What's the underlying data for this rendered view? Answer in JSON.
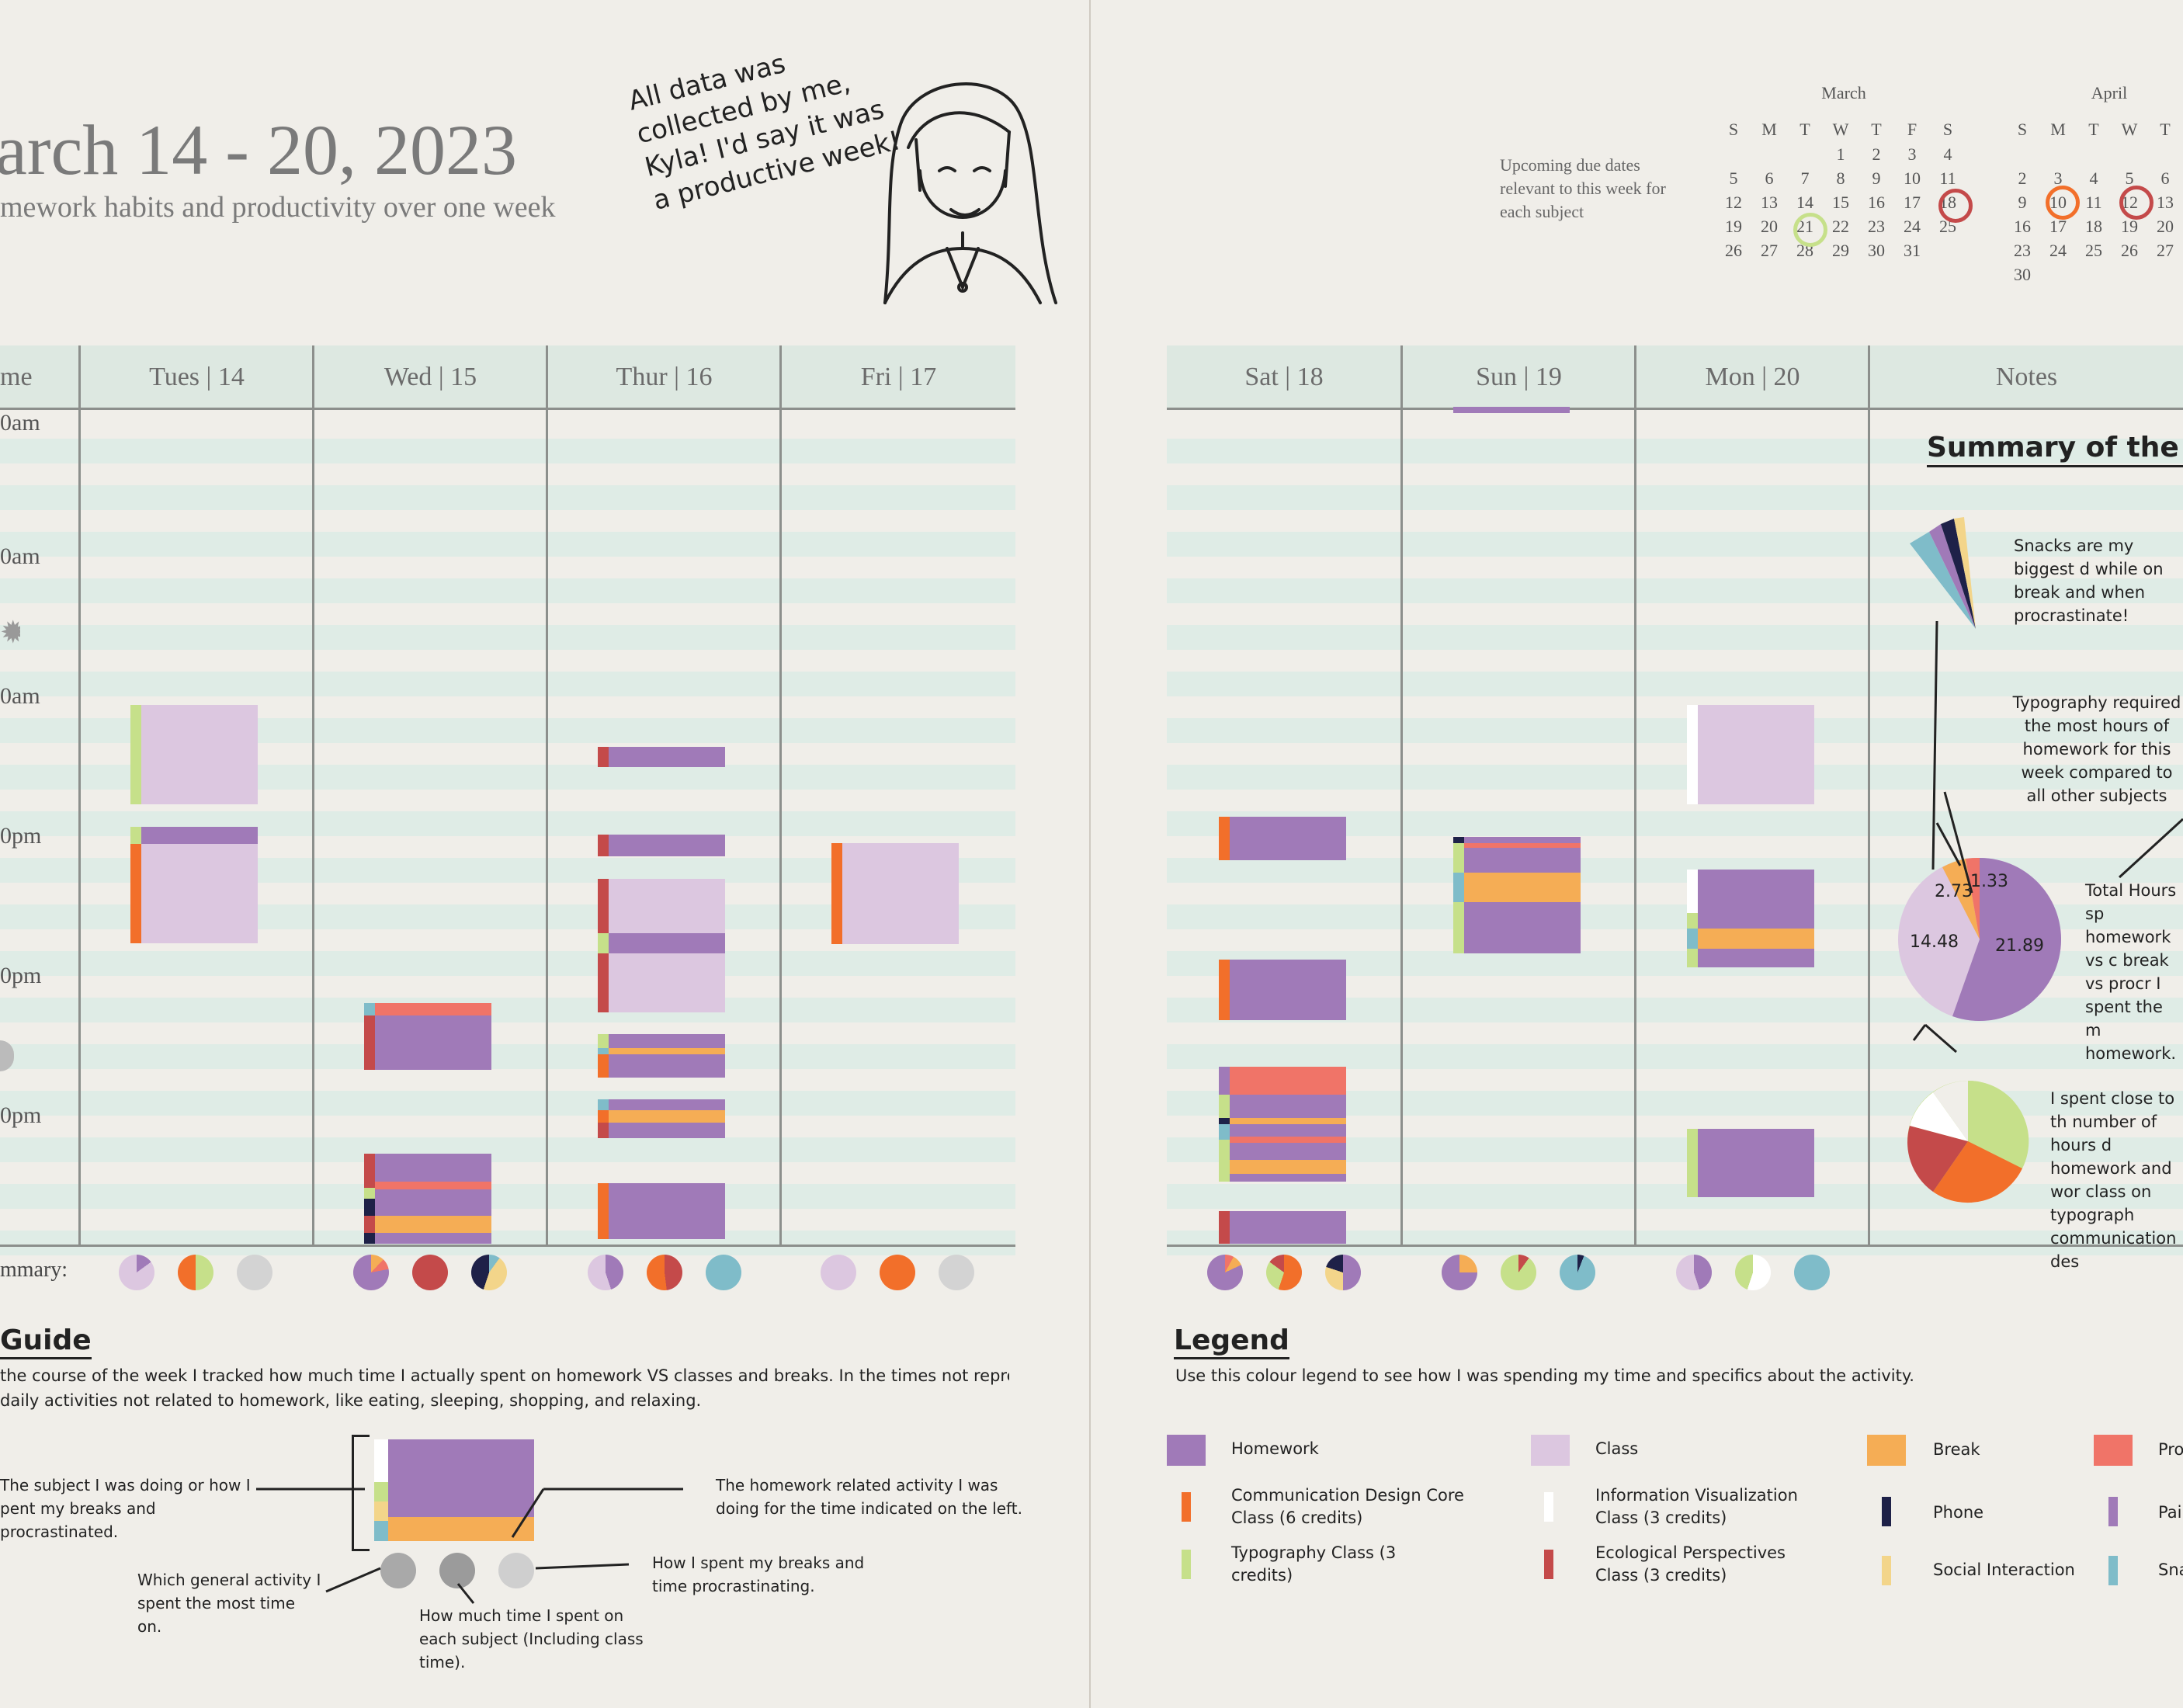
{
  "header": {
    "title": "arch 14 - 20, 2023",
    "subtitle": "mework habits and productivity over one week",
    "speech": "All data was collected by me, Kyla! I'd say it was a productive week!"
  },
  "calendar": {
    "note": "Upcoming due dates relevant to this week for each subject",
    "march": {
      "title": "March",
      "days": [
        "S",
        "M",
        "T",
        "W",
        "T",
        "F",
        "S"
      ],
      "rows": [
        [
          "",
          "",
          "",
          "1",
          "2",
          "3",
          "4"
        ],
        [
          "5",
          "6",
          "7",
          "8",
          "9",
          "10",
          "11"
        ],
        [
          "12",
          "13",
          "14",
          "15",
          "16",
          "17",
          "18"
        ],
        [
          "19",
          "20",
          "21",
          "22",
          "23",
          "24",
          "25"
        ],
        [
          "26",
          "27",
          "28",
          "29",
          "30",
          "31",
          ""
        ]
      ]
    },
    "april": {
      "title": "April",
      "days": [
        "S",
        "M",
        "T",
        "W",
        "T"
      ],
      "rows": [
        [
          "",
          "",
          "",
          "",
          ""
        ],
        [
          "2",
          "3",
          "4",
          "5",
          "6"
        ],
        [
          "9",
          "10",
          "11",
          "12",
          "13"
        ],
        [
          "16",
          "17",
          "18",
          "19",
          "20"
        ],
        [
          "23",
          "24",
          "25",
          "26",
          "27"
        ],
        [
          "30",
          "",
          "",
          "",
          ""
        ]
      ]
    }
  },
  "columns": [
    "me",
    "Tues | 14",
    "Wed | 15",
    "Thur | 16",
    "Fri | 17",
    "Sat | 18",
    "Sun | 19",
    "Mon | 20",
    "Notes"
  ],
  "time_labels": [
    "0am",
    "0am",
    "0am",
    "0pm",
    "0pm",
    "0pm"
  ],
  "summary_label": "mmary:",
  "notes": {
    "title": "Summary of the Wee",
    "n1": "Snacks are my biggest d while on break and when procrastinate!",
    "n2": "Typography required the most hours of homework for this week compared to all other subjects",
    "n3": "Total Hours sp homework vs c break vs procr I spent the m homework.",
    "n4": "I spent close to th number of hours d homework and wor class on typograph communication des",
    "pie_values": [
      "21.89",
      "14.48",
      "2.73",
      "1.33"
    ]
  },
  "guide": {
    "title": "Guide",
    "intro1": "the course of the week I tracked how much time I actually spent on homework VS classes and breaks. In the times not represented, I was",
    "intro2": "daily activities not related to homework, like eating, sleeping, shopping, and relaxing.",
    "a1": "The subject I was doing or how I pent my breaks and procrastinated.",
    "a2": "The homework related activity I was doing for the time indicated on the left.",
    "a3": "Which general activity I spent the most time on.",
    "a4": "How much time I spent on each subject (Including class time).",
    "a5": "How I spent my breaks and time procrastinating."
  },
  "legend": {
    "title": "Legend",
    "intro": "Use this colour legend to see how I was spending my time and specifics about the activity.",
    "items": {
      "homework": "Homework",
      "class": "Class",
      "break": "Break",
      "pro": "Pro",
      "comm": "Communication Design Core Class (6 credits)",
      "info": "Information Visualization Class (3 credits)",
      "phone": "Phone",
      "pain": "Pai",
      "typo": "Typography Class (3 credits)",
      "eco": "Ecological Perspectives Class (3 credits)",
      "social": "Social Interaction",
      "snack": "Sna"
    }
  },
  "colors": {
    "homework": "#a07ab8",
    "class": "#dcc7e0",
    "break": "#f5ad55",
    "procrastinate": "#f07468",
    "comm": "#f26f2a",
    "typo": "#c6e08a",
    "eco": "#c44a4a",
    "phone": "#1e2148",
    "social": "#f3d58a",
    "snack": "#7fbcc9",
    "info": "#ffffff"
  }
}
